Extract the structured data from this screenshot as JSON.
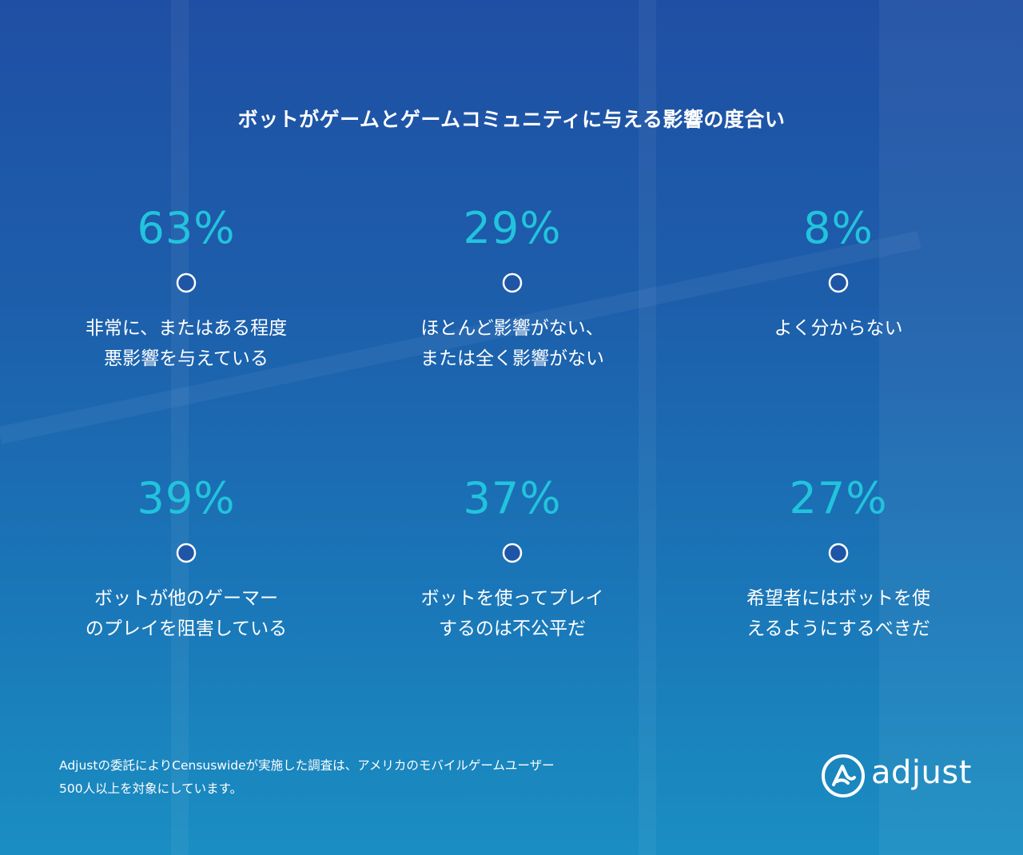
{
  "chart_data": {
    "type": "timeline",
    "title": "ボットがゲームとゲームコミュニティに与える影響の度合い",
    "rows": [
      {
        "items": [
          {
            "value": 63,
            "display": "63%",
            "label_lines": [
              "非常に、またはある程度",
              "悪影響を与えている"
            ]
          },
          {
            "value": 29,
            "display": "29%",
            "label_lines": [
              "ほとんど影響がない、",
              "または全く影響がない"
            ]
          },
          {
            "value": 8,
            "display": "8%",
            "label_lines": [
              "よく分からない"
            ]
          }
        ]
      },
      {
        "items": [
          {
            "value": 39,
            "display": "39%",
            "label_lines": [
              "ボットが他のゲーマー",
              "のプレイを阻害している"
            ]
          },
          {
            "value": 37,
            "display": "37%",
            "label_lines": [
              "ボットを使ってプレイ",
              "するのは不公平だ"
            ]
          },
          {
            "value": 27,
            "display": "27%",
            "label_lines": [
              "希望者にはボットを使",
              "えるようにするべきだ"
            ]
          }
        ]
      }
    ],
    "accent_color": "#22c3dd"
  },
  "footer": {
    "note_lines": [
      "Adjustの委託によりCensuswideが実施した調査は、アメリカのモバイルゲームユーザー",
      "500人以上を対象にしています。"
    ],
    "logo_text": "adjust",
    "logo_icon": "adjust-logo-icon"
  }
}
